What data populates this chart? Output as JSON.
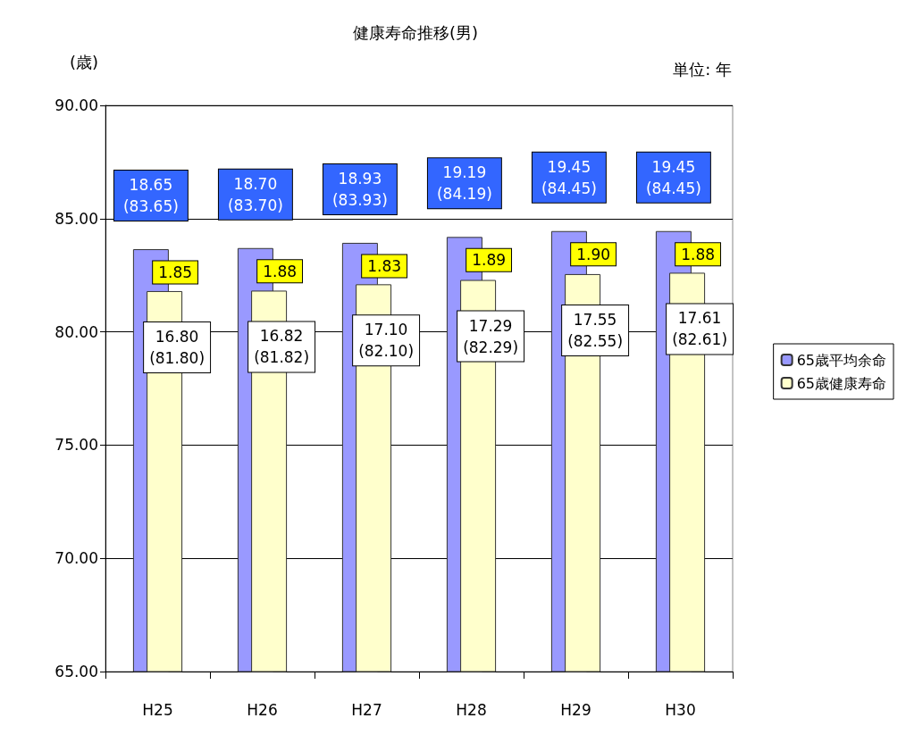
{
  "chart_data": {
    "type": "bar",
    "title": "健康寿命推移(男)",
    "ylabel": "(歳)",
    "categories": [
      "H25",
      "H26",
      "H27",
      "H28",
      "H29",
      "H30"
    ],
    "series": [
      {
        "name": "65歳平均余命",
        "color": "#9999ff",
        "values": [
          83.65,
          83.7,
          83.93,
          84.19,
          84.45,
          84.45
        ],
        "value_labels": [
          "18.65\n(83.65)",
          "18.70\n(83.70)",
          "18.93\n(83.93)",
          "19.19\n(84.19)",
          "19.45\n(84.45)",
          "19.45\n(84.45)"
        ]
      },
      {
        "name": "65歳健康寿命",
        "color": "#ffffcc",
        "values": [
          81.8,
          81.82,
          82.1,
          82.29,
          82.55,
          82.61
        ],
        "value_labels": [
          "16.80\n(81.80)",
          "16.82\n(81.82)",
          "17.10\n(82.10)",
          "17.29\n(82.29)",
          "17.55\n(82.55)",
          "17.61\n(82.61)"
        ]
      }
    ],
    "annotations": [
      {
        "text": "1.85",
        "x": "H25",
        "y": 83.65
      },
      {
        "text": "1.88",
        "x": "H26",
        "y": 83.7
      },
      {
        "text": "1.83",
        "x": "H27",
        "y": 83.93
      },
      {
        "text": "1.89",
        "x": "H28",
        "y": 84.19
      },
      {
        "text": "1.90",
        "x": "H29",
        "y": 84.45
      },
      {
        "text": "1.88",
        "x": "H30",
        "y": 84.45
      },
      "単位: 年"
    ],
    "ylim": [
      65,
      90
    ],
    "yticks": [
      {
        "value": 65,
        "label": "65.00"
      },
      {
        "value": 70,
        "label": "70.00"
      },
      {
        "value": 75,
        "label": "75.00"
      },
      {
        "value": 80,
        "label": "80.00"
      },
      {
        "value": 85,
        "label": "85.00"
      },
      {
        "value": 90,
        "label": "90.00"
      }
    ],
    "grid": "y",
    "legend": "right"
  }
}
